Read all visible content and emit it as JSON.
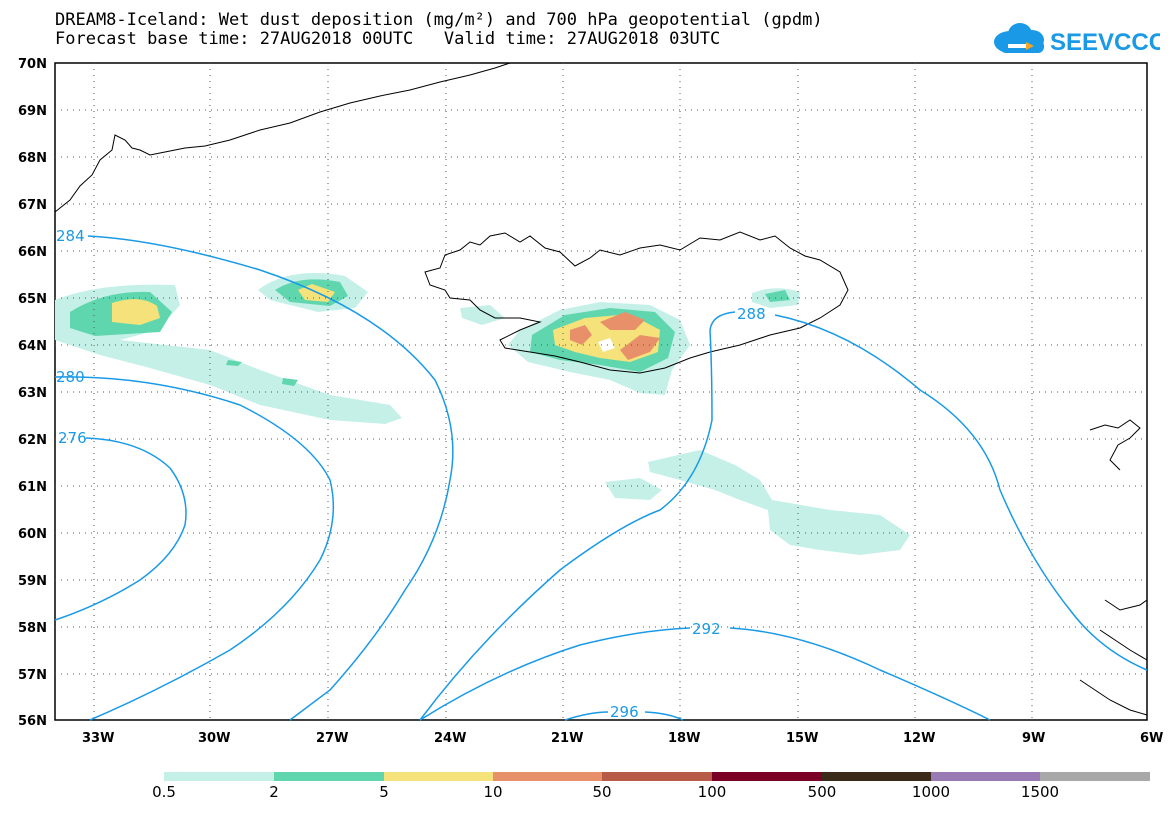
{
  "header": {
    "title_line1": "DREAM8-Iceland: Wet dust deposition (mg/m²) and 700 hPa geopotential (gpdm)",
    "title_line2": "Forecast base time: 27AUG2018 00UTC   Valid time: 27AUG2018 03UTC"
  },
  "logo": {
    "text": "SEEVCCC",
    "color": "#1a9ae6"
  },
  "map": {
    "lat_labels": [
      "70N",
      "69N",
      "68N",
      "67N",
      "66N",
      "65N",
      "64N",
      "63N",
      "62N",
      "61N",
      "60N",
      "59N",
      "58N",
      "57N",
      "56N"
    ],
    "lon_labels": [
      "33W",
      "30W",
      "27W",
      "24W",
      "21W",
      "18W",
      "15W",
      "12W",
      "9W",
      "6W"
    ],
    "contour_labels": [
      "284",
      "280",
      "276",
      "288",
      "292",
      "296"
    ],
    "contour_color": "#1a9ae6"
  },
  "legend": {
    "labels": [
      "0.5",
      "2",
      "5",
      "10",
      "50",
      "100",
      "500",
      "1000",
      "1500"
    ],
    "colors": [
      "#c4f0e8",
      "#5fd6ad",
      "#f5e27a",
      "#e8906a",
      "#b85a48",
      "#7a0026",
      "#3a2a1a",
      "#9a7ab5",
      "#a8a8a8"
    ]
  }
}
